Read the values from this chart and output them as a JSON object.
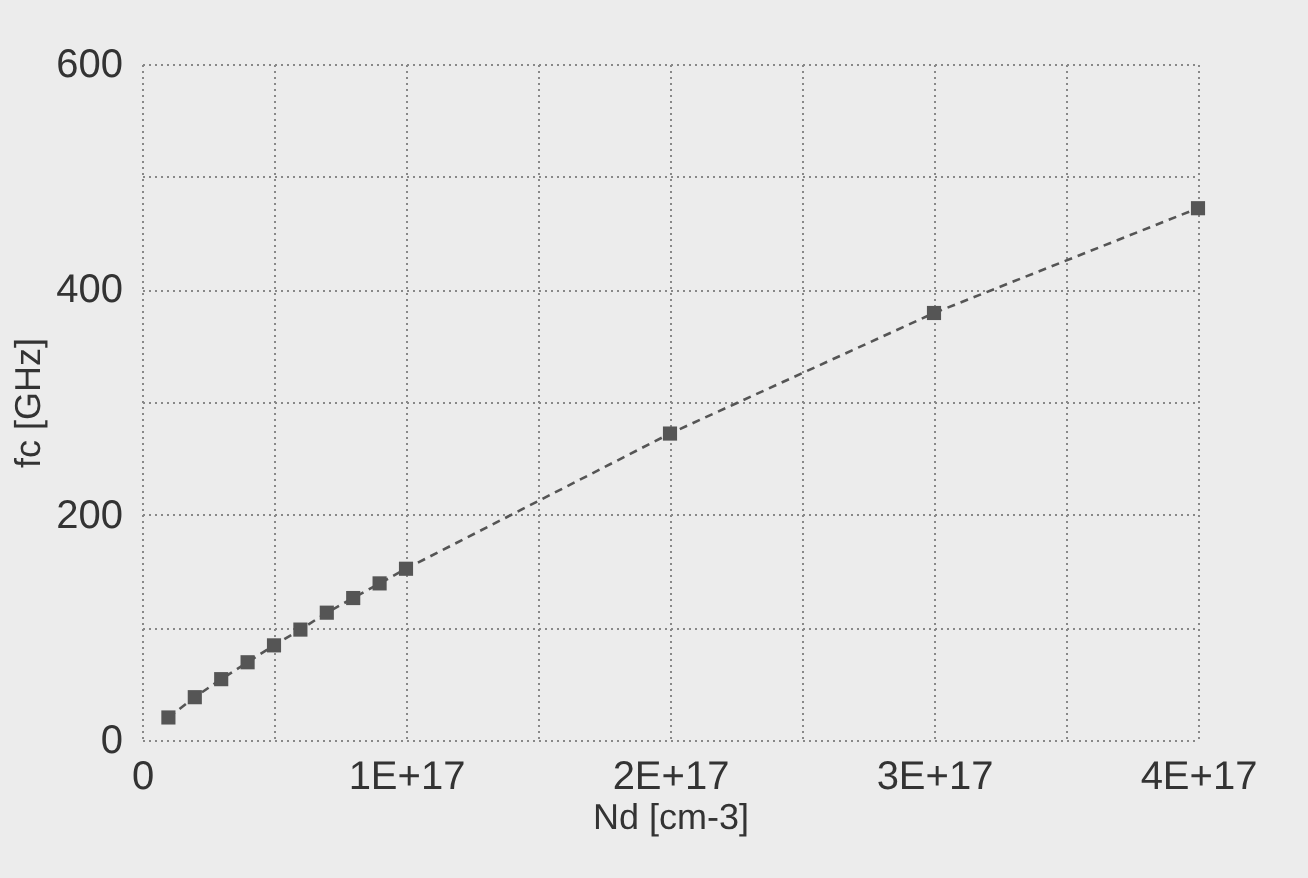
{
  "chart_data": {
    "type": "line",
    "xlabel": "Nd [cm-3]",
    "ylabel": "fc [GHz]",
    "x": [
      1e+16,
      2e+16,
      3e+16,
      4e+16,
      5e+16,
      6e+16,
      7e+16,
      8e+16,
      9e+16,
      1e+17,
      2e+17,
      3e+17,
      4e+17
    ],
    "series": [
      {
        "color": "#555555",
        "values": [
          20,
          38,
          54,
          69,
          84,
          98,
          113,
          126,
          139,
          152,
          272,
          379,
          472
        ]
      }
    ],
    "xlim": [
      0,
      4e+17
    ],
    "xticks": [
      0,
      {
        "value": 5e+16,
        "label": null
      },
      {
        "value": 1e+17,
        "label": "1E+17"
      },
      {
        "value": 1.5e+17,
        "label": null
      },
      {
        "value": 2e+17,
        "label": "2E+17"
      },
      {
        "value": 2.5e+17,
        "label": null
      },
      {
        "value": 3e+17,
        "label": "3E+17"
      },
      {
        "value": 3.5e+17,
        "label": null
      },
      {
        "value": 4e+17,
        "label": "4E+17"
      }
    ],
    "ylim": [
      0,
      600
    ],
    "yticks": [
      0,
      {
        "value": 100,
        "label": null
      },
      200,
      {
        "value": 300,
        "label": null
      },
      400,
      {
        "value": 500,
        "label": null
      },
      600
    ],
    "grid": true,
    "marker": "square",
    "line_style": "dashed"
  }
}
